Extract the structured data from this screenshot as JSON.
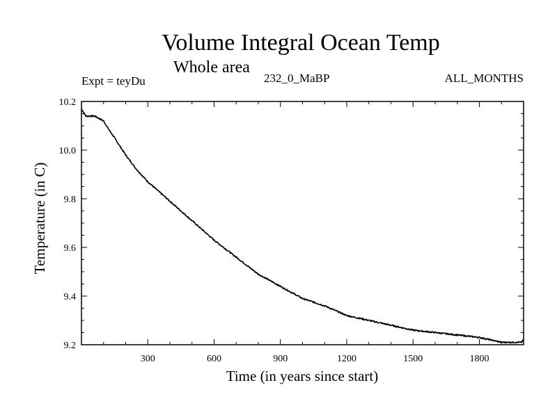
{
  "chart_data": {
    "type": "line",
    "title": "Volume Integral Ocean Temp",
    "subtitle": "Whole area",
    "experiment": "Expt = teyDu",
    "run_label": "232_0_MaBP",
    "season": "ALL_MONTHS",
    "xlabel": "Time (in years since start)",
    "ylabel": "Temperature (in C)",
    "xlim": [
      0,
      2000
    ],
    "ylim": [
      9.2,
      10.2
    ],
    "xticks": [
      300,
      600,
      900,
      1200,
      1500,
      1800
    ],
    "xtick_labels": [
      "300",
      "600",
      "900",
      "1200",
      "1500",
      "1800"
    ],
    "yticks": [
      9.2,
      9.4,
      9.6,
      9.8,
      10.0,
      10.2
    ],
    "ytick_labels": [
      "9.2",
      "9.4",
      "9.6",
      "9.8",
      "10.0",
      "10.2"
    ],
    "series": [
      {
        "name": "Volume integral ocean temperature",
        "color": "#000000",
        "x": [
          0,
          20,
          40,
          60,
          80,
          100,
          120,
          150,
          200,
          250,
          300,
          400,
          500,
          600,
          700,
          800,
          900,
          1000,
          1100,
          1200,
          1300,
          1400,
          1500,
          1600,
          1700,
          1800,
          1900,
          1950,
          1990,
          2000
        ],
        "y": [
          10.17,
          10.14,
          10.14,
          10.14,
          10.13,
          10.12,
          10.09,
          10.05,
          9.98,
          9.92,
          9.87,
          9.79,
          9.71,
          9.63,
          9.56,
          9.49,
          9.44,
          9.39,
          9.36,
          9.32,
          9.3,
          9.28,
          9.26,
          9.25,
          9.24,
          9.23,
          9.21,
          9.21,
          9.21,
          9.22
        ]
      }
    ]
  }
}
